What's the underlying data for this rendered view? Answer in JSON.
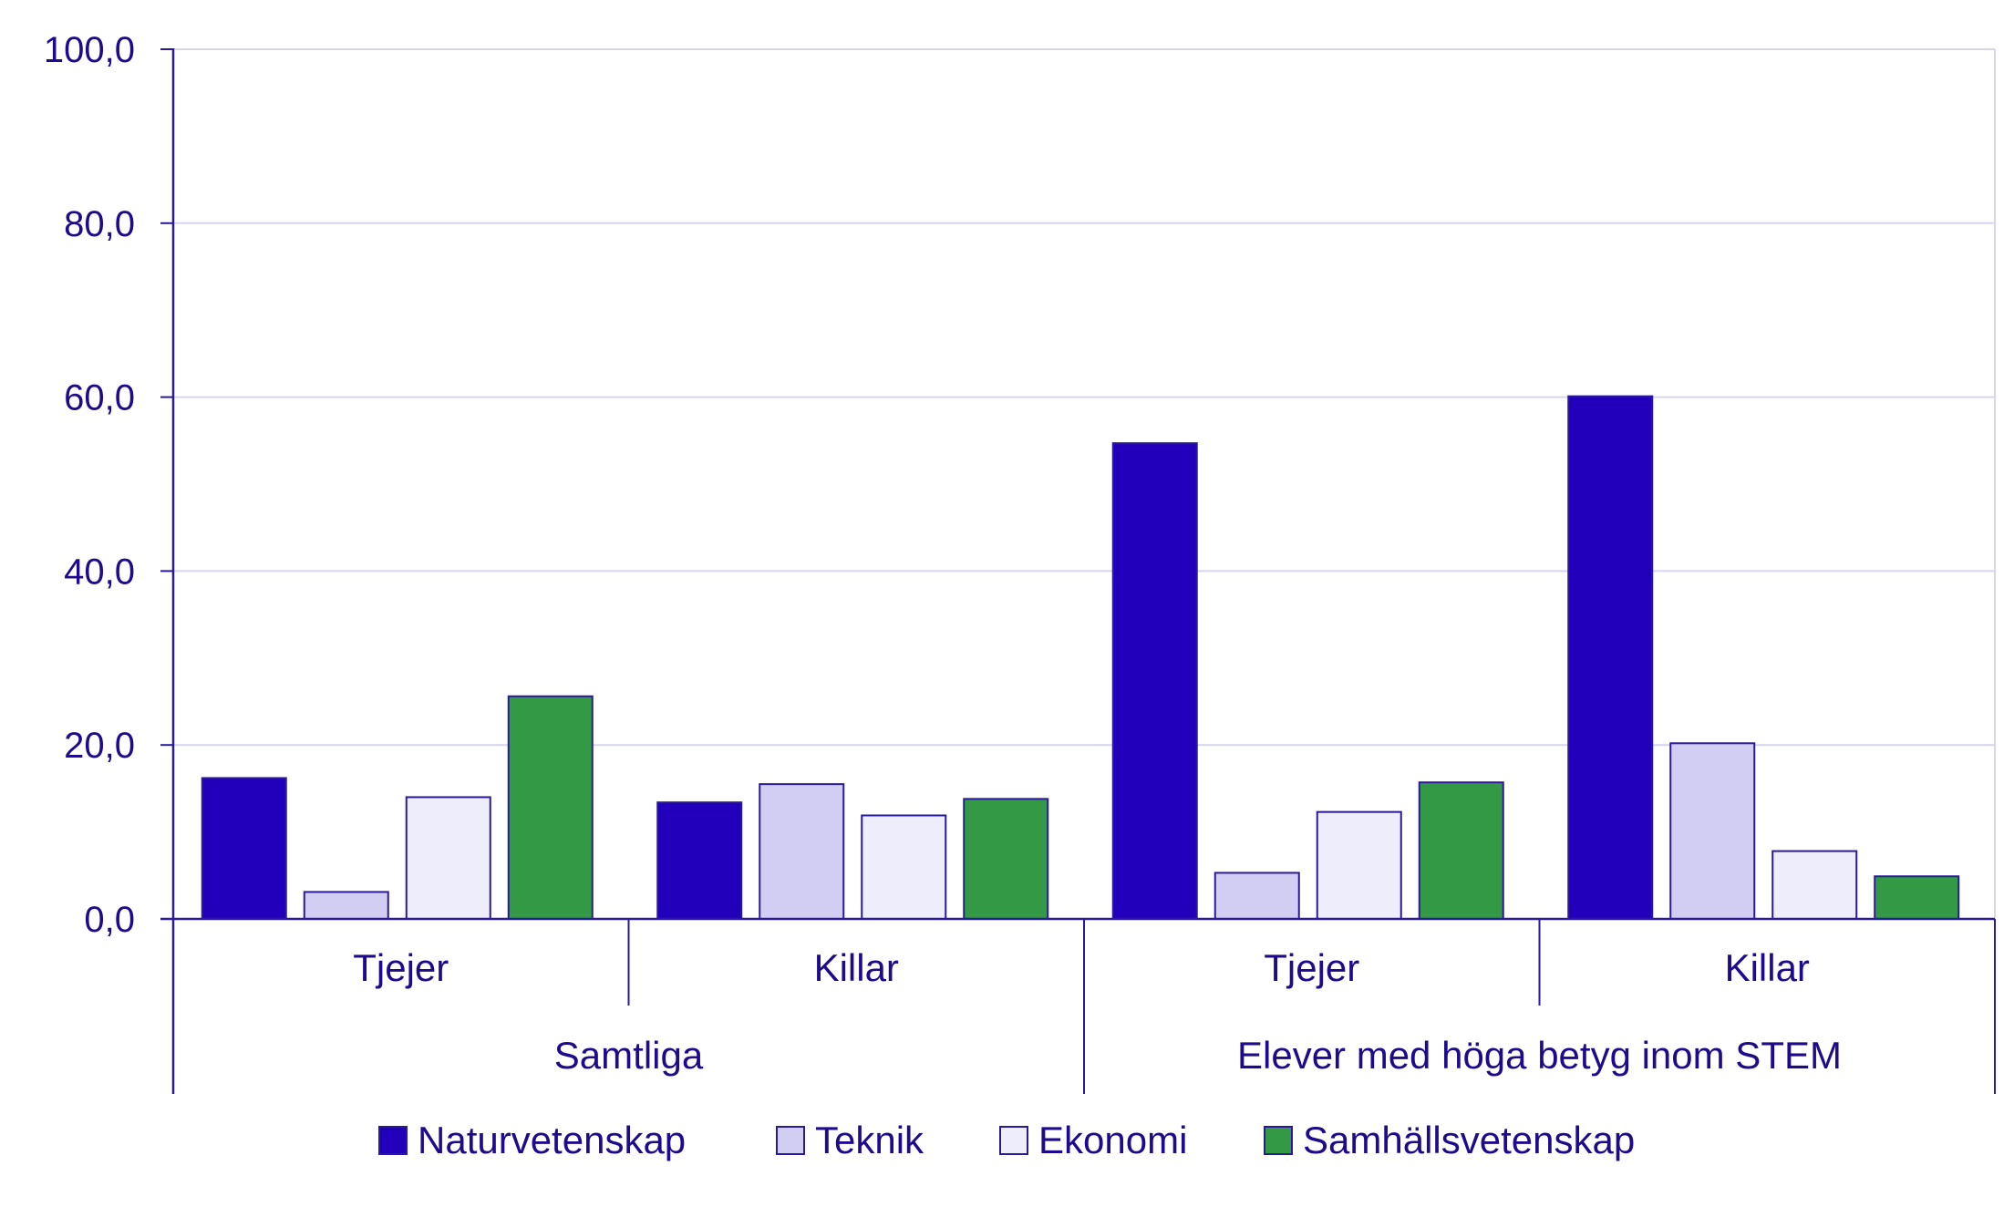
{
  "chart_data": {
    "type": "bar",
    "title": "",
    "xlabel": "",
    "ylabel": "",
    "ylim": [
      0,
      100
    ],
    "y_ticks": [
      "0,0",
      "20,0",
      "40,0",
      "60,0",
      "80,0",
      "100,0"
    ],
    "y_tick_values": [
      0,
      20,
      40,
      60,
      80,
      100
    ],
    "grid": true,
    "legend_position": "bottom",
    "groups": [
      {
        "label": "Samtliga",
        "categories": [
          "Tjejer",
          "Killar"
        ]
      },
      {
        "label": "Elever med höga betyg inom STEM",
        "categories": [
          "Tjejer",
          "Killar"
        ]
      }
    ],
    "categories": [
      "Tjejer",
      "Killar",
      "Tjejer",
      "Killar"
    ],
    "series": [
      {
        "name": "Naturvetenskap",
        "color": "#2200bb",
        "values": [
          16.2,
          13.4,
          54.7,
          60.1
        ]
      },
      {
        "name": "Teknik",
        "color": "#d2cdf2",
        "values": [
          3.1,
          15.5,
          5.3,
          20.2
        ]
      },
      {
        "name": "Ekonomi",
        "color": "#eeedfb",
        "values": [
          14.0,
          11.9,
          12.3,
          7.8
        ]
      },
      {
        "name": "Samhällsvetenskap",
        "color": "#339944",
        "values": [
          25.6,
          13.8,
          15.7,
          4.9
        ]
      }
    ],
    "axis_color": "#2a1a9a",
    "grid_color": "#d6d4f0",
    "text_color": "#1e0a8c"
  }
}
